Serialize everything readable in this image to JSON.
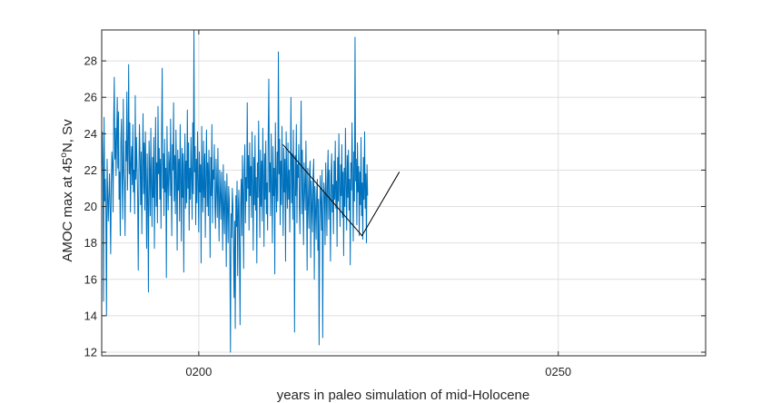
{
  "chart_data": {
    "type": "line",
    "title": "",
    "xlabel": "years in paleo simulation of mid-Holocene",
    "ylabel_parts": {
      "before": "AMOC max at 45",
      "superscript": "o",
      "after": "N, Sv"
    },
    "xlim": [
      186.5,
      270.5
    ],
    "ylim": [
      11.8,
      29.7
    ],
    "x_ticks": [
      {
        "value": 200,
        "label": "0200"
      },
      {
        "value": 250,
        "label": "0250"
      }
    ],
    "y_ticks": [
      {
        "value": 12,
        "label": "12"
      },
      {
        "value": 14,
        "label": "14"
      },
      {
        "value": 16,
        "label": "16"
      },
      {
        "value": 18,
        "label": "18"
      },
      {
        "value": 20,
        "label": "20"
      },
      {
        "value": 22,
        "label": "22"
      },
      {
        "value": 24,
        "label": "24"
      },
      {
        "value": 26,
        "label": "26"
      },
      {
        "value": 28,
        "label": "28"
      }
    ],
    "grid": true,
    "series": [
      {
        "color": "#0072BD",
        "x_start": 186.5,
        "x_step": 0.0833,
        "values": [
          21.4,
          24.1,
          22.2,
          14.8,
          24.9,
          20.3,
          21.5,
          19.6,
          14.0,
          22.6,
          20.7,
          19.2,
          20.5,
          21.8,
          19.9,
          17.4,
          21.3,
          23.0,
          22.4,
          19.7,
          24.7,
          27.1,
          22.6,
          24.3,
          21.7,
          23.9,
          26.0,
          22.1,
          25.2,
          20.4,
          21.9,
          18.4,
          23.6,
          24.8,
          21.5,
          19.3,
          25.9,
          22.0,
          21.3,
          18.4,
          23.6,
          22.5,
          26.3,
          20.9,
          23.0,
          27.8,
          21.8,
          24.6,
          19.7,
          22.4,
          23.3,
          21.2,
          24.5,
          20.8,
          22.0,
          19.6,
          26.1,
          21.5,
          23.8,
          22.1,
          20.6,
          16.5,
          21.7,
          24.5,
          22.8,
          20.1,
          23.0,
          18.5,
          22.2,
          25.1,
          20.7,
          23.5,
          19.8,
          24.1,
          21.3,
          17.7,
          22.9,
          20.3,
          15.3,
          23.6,
          22.0,
          19.5,
          24.3,
          21.1,
          18.9,
          22.7,
          20.5,
          23.8,
          17.7,
          21.6,
          24.9,
          20.0,
          22.4,
          19.1,
          25.5,
          21.8,
          23.2,
          20.4,
          22.6,
          18.8,
          24.0,
          27.6,
          21.0,
          22.9,
          19.5,
          23.7,
          20.8,
          22.1,
          16.1,
          24.4,
          21.5,
          19.8,
          23.0,
          22.3,
          20.6,
          24.8,
          21.2,
          18.4,
          23.4,
          22.0,
          25.7,
          20.3,
          22.8,
          19.6,
          24.2,
          21.5,
          17.6,
          23.1,
          20.9,
          22.6,
          19.2,
          24.5,
          21.7,
          18.1,
          23.2,
          20.5,
          22.9,
          16.4,
          21.8,
          24.0,
          19.9,
          22.5,
          20.2,
          25.3,
          21.0,
          23.5,
          18.7,
          22.1,
          20.4,
          23.8,
          21.6,
          19.3,
          24.6,
          20.7,
          29.7,
          21.9,
          23.3,
          19.0,
          22.6,
          20.2,
          24.1,
          21.4,
          18.6,
          23.0,
          20.8,
          22.3,
          16.9,
          24.4,
          21.1,
          19.7,
          23.6,
          20.5,
          22.9,
          18.3,
          21.7,
          24.2,
          20.0,
          22.4,
          19.5,
          23.1,
          21.3,
          17.2,
          22.7,
          20.6,
          24.5,
          19.1,
          22.0,
          21.5,
          23.4,
          20.1,
          18.8,
          22.6,
          21.0,
          19.4,
          23.2,
          20.5,
          18.1,
          22.0,
          20.7,
          19.3,
          21.9,
          20.2,
          17.6,
          22.3,
          19.8,
          18.5,
          21.4,
          20.6,
          16.7,
          21.8,
          19.9,
          18.0,
          21.1,
          20.4,
          17.4,
          12.0,
          19.6,
          18.3,
          21.0,
          20.1,
          17.8,
          15.0,
          19.2,
          13.3,
          20.6,
          18.9,
          21.4,
          16.2,
          19.8,
          20.9,
          17.5,
          13.5,
          20.2,
          21.5,
          18.4,
          22.8,
          20.7,
          16.6,
          22.0,
          23.4,
          19.1,
          21.6,
          20.3,
          25.7,
          21.0,
          22.8,
          18.7,
          23.5,
          20.6,
          22.2,
          19.4,
          24.1,
          21.3,
          17.6,
          22.7,
          20.1,
          23.9,
          19.8,
          21.6,
          16.9,
          22.4,
          20.5,
          24.7,
          21.2,
          18.3,
          23.1,
          20.0,
          22.5,
          19.2,
          24.3,
          21.7,
          17.8,
          22.9,
          20.4,
          23.6,
          19.6,
          21.3,
          18.7,
          23.9,
          27.0,
          20.8,
          22.4,
          19.5,
          24.0,
          21.2,
          18.0,
          23.3,
          20.6,
          22.1,
          16.3,
          24.6,
          21.4,
          19.7,
          23.0,
          20.3,
          28.5,
          21.8,
          23.7,
          19.0,
          22.5,
          20.1,
          24.4,
          21.5,
          18.4,
          23.2,
          20.8,
          22.6,
          17.0,
          24.1,
          21.3,
          19.9,
          23.5,
          20.4,
          22.0,
          18.6,
          21.7,
          26.0,
          20.2,
          22.9,
          19.3,
          24.2,
          21.0,
          13.1,
          22.8,
          20.6,
          24.5,
          19.1,
          22.3,
          21.6,
          23.4,
          20.0,
          18.5,
          22.7,
          25.8,
          19.6,
          23.1,
          20.4,
          17.9,
          22.4,
          21.0,
          19.8,
          23.6,
          20.7,
          16.5,
          22.1,
          20.3,
          18.8,
          21.9,
          22.5,
          17.2,
          21.4,
          20.0,
          18.6,
          21.7,
          22.6,
          16.0,
          21.1,
          19.9,
          18.2,
          20.8,
          21.5,
          17.6,
          20.4,
          12.4,
          19.0,
          21.7,
          20.2,
          18.7,
          22.0,
          12.8,
          19.5,
          21.3,
          20.6,
          17.9,
          22.4,
          20.8,
          18.4,
          21.6,
          23.1,
          19.3,
          22.0,
          20.1,
          17.0,
          21.8,
          22.9,
          19.7,
          21.2,
          18.5,
          22.5,
          20.4,
          23.6,
          19.9,
          21.4,
          17.8,
          22.7,
          20.3,
          24.0,
          21.0,
          18.9,
          22.3,
          20.6,
          23.4,
          19.4,
          21.9,
          17.3,
          22.1,
          20.0,
          24.3,
          21.2,
          18.7,
          22.8,
          20.5,
          23.1,
          19.8,
          21.5,
          16.8,
          22.4,
          20.9,
          24.6,
          21.6,
          18.1,
          23.0,
          20.3,
          29.3,
          21.4,
          22.6,
          19.0,
          23.5,
          20.8,
          22.2,
          18.4,
          21.9,
          20.1,
          23.8,
          19.5,
          21.3,
          18.2,
          22.7,
          20.4,
          24.1,
          19.9,
          21.8,
          18.0,
          22.3,
          20.6
        ]
      }
    ],
    "annotation_line": {
      "color": "#000000",
      "points": [
        [
          211.7,
          23.4
        ],
        [
          222.7,
          18.4
        ],
        [
          227.9,
          21.9
        ]
      ]
    }
  }
}
